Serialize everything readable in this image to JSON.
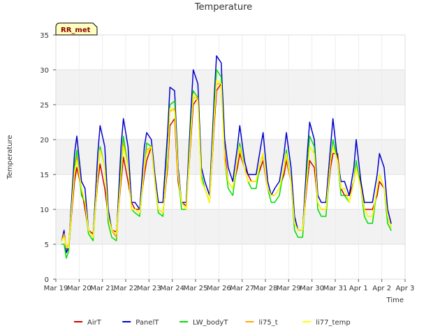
{
  "chart_data": {
    "type": "line",
    "title": "Temperature",
    "xlabel": "Time",
    "ylabel": "Temperature",
    "ylim": [
      0,
      35
    ],
    "yticks": [
      0,
      5,
      10,
      15,
      20,
      25,
      30,
      35
    ],
    "xlim": [
      0,
      15
    ],
    "xticks": [
      {
        "value": 0,
        "label": "Mar 19"
      },
      {
        "value": 1,
        "label": "Mar 20"
      },
      {
        "value": 2,
        "label": "Mar 21"
      },
      {
        "value": 3,
        "label": "Mar 22"
      },
      {
        "value": 4,
        "label": "Mar 23"
      },
      {
        "value": 5,
        "label": "Mar 24"
      },
      {
        "value": 6,
        "label": "Mar 25"
      },
      {
        "value": 7,
        "label": "Mar 26"
      },
      {
        "value": 8,
        "label": "Mar 27"
      },
      {
        "value": 9,
        "label": "Mar 28"
      },
      {
        "value": 10,
        "label": "Mar 29"
      },
      {
        "value": 11,
        "label": "Mar 30"
      },
      {
        "value": 12,
        "label": "Mar 31"
      },
      {
        "value": 13,
        "label": "Apr 1"
      },
      {
        "value": 14,
        "label": "Apr 2"
      },
      {
        "value": 15,
        "label": "Apr 3"
      }
    ],
    "grid": true,
    "alternating_bands": true,
    "legend_position": "bottom",
    "badge": "RR_met",
    "x": [
      0.25,
      0.35,
      0.45,
      0.55,
      0.65,
      0.8,
      0.9,
      1.1,
      1.25,
      1.4,
      1.6,
      1.8,
      1.9,
      2.1,
      2.25,
      2.4,
      2.6,
      2.8,
      2.9,
      3.1,
      3.25,
      3.4,
      3.6,
      3.8,
      3.9,
      4.1,
      4.25,
      4.4,
      4.6,
      4.8,
      4.9,
      5.1,
      5.25,
      5.4,
      5.6,
      5.8,
      5.9,
      6.1,
      6.25,
      6.4,
      6.6,
      6.8,
      6.9,
      7.1,
      7.25,
      7.4,
      7.6,
      7.8,
      7.9,
      8.1,
      8.25,
      8.4,
      8.6,
      8.8,
      8.9,
      9.1,
      9.25,
      9.4,
      9.6,
      9.8,
      9.9,
      10.1,
      10.25,
      10.4,
      10.6,
      10.8,
      10.9,
      11.1,
      11.25,
      11.4,
      11.6,
      11.8,
      11.9,
      12.1,
      12.25,
      12.4,
      12.6,
      12.8,
      12.9,
      13.1,
      13.25,
      13.4,
      13.6,
      13.8,
      13.9,
      14.1,
      14.25,
      14.4
    ],
    "series": [
      {
        "name": "AirT",
        "color": "#cc0000",
        "values": [
          5.5,
          6.3,
          4.5,
          4.2,
          8.5,
          14,
          16,
          13,
          10,
          7,
          6.5,
          14,
          16.5,
          13,
          9,
          7,
          6.8,
          14,
          17.5,
          14,
          11,
          10,
          10,
          15,
          17,
          19,
          14,
          10,
          9.5,
          16,
          22,
          23,
          14,
          11,
          10.5,
          20,
          25,
          26,
          14,
          13,
          11,
          22,
          27,
          28,
          18,
          14,
          13,
          16,
          18,
          16,
          15,
          14,
          14,
          16,
          17,
          13,
          12,
          12,
          13,
          15,
          17,
          14,
          8,
          7,
          7,
          14,
          17,
          16,
          11,
          10,
          10,
          16,
          18,
          18,
          13,
          12,
          12,
          14,
          16,
          14,
          10,
          10,
          10,
          12,
          14,
          13,
          9,
          7.5
        ]
      },
      {
        "name": "PanelT",
        "color": "#0000cc",
        "values": [
          5.5,
          7,
          3.8,
          4.5,
          10,
          18,
          20.5,
          14,
          13,
          7,
          6,
          18,
          22,
          19,
          10,
          7,
          6,
          19,
          23,
          19,
          11,
          11,
          10,
          19,
          21,
          20,
          15,
          11,
          11,
          21,
          27.5,
          27,
          16,
          11,
          11,
          24,
          30,
          28,
          16,
          14,
          12,
          26,
          32,
          31,
          20,
          16,
          14,
          19,
          22,
          17,
          15,
          15,
          15,
          19,
          21,
          14,
          12,
          13,
          14,
          18,
          21,
          16,
          9,
          7,
          7,
          18,
          22.5,
          20,
          12,
          11,
          11,
          19,
          23,
          17,
          14,
          14,
          12,
          16,
          20,
          14,
          11,
          11,
          11,
          15,
          18,
          16,
          10,
          8
        ]
      },
      {
        "name": "LW_bodyT",
        "color": "#00dd00",
        "values": [
          5,
          5,
          3,
          4,
          9,
          16,
          18.5,
          12,
          11,
          6.5,
          5.5,
          15,
          19,
          16,
          8,
          6,
          5.5,
          16,
          20.5,
          16,
          10,
          9.5,
          9,
          16,
          19.5,
          19,
          14,
          9.5,
          9,
          18,
          25,
          25.5,
          15,
          10,
          10,
          22,
          27,
          26,
          15,
          13,
          11,
          24,
          30,
          29,
          17,
          13,
          12,
          17,
          19.5,
          16,
          14,
          13,
          13,
          17,
          18,
          13,
          11,
          11,
          12,
          16,
          18.5,
          14,
          7,
          6,
          6,
          16,
          20.5,
          19,
          10,
          9,
          9,
          17,
          20,
          17,
          12,
          12,
          11,
          14,
          17,
          13,
          9,
          8,
          8,
          13,
          15,
          13,
          8,
          7
        ]
      },
      {
        "name": "li75_t",
        "color": "#ffaa00",
        "values": [
          5.5,
          6.5,
          4.5,
          5,
          9,
          15,
          17.5,
          13,
          11,
          7,
          6,
          15,
          18.5,
          16,
          9,
          7,
          6,
          15,
          19.5,
          16,
          10,
          10,
          9.5,
          16,
          18.5,
          19,
          14,
          10,
          9.5,
          17,
          24,
          24.5,
          15,
          11,
          10,
          21,
          26,
          26,
          14,
          13,
          11,
          23,
          28,
          28,
          17,
          14,
          13,
          17,
          18.5,
          16,
          14,
          14,
          14,
          17,
          17.5,
          13,
          12,
          12,
          13,
          16,
          17.5,
          14,
          8,
          7,
          7,
          15,
          19,
          18,
          11,
          10,
          10,
          17,
          19,
          17,
          13,
          13,
          11,
          14,
          16,
          13,
          10,
          9,
          9,
          13,
          15,
          13,
          9,
          7.5
        ]
      },
      {
        "name": "li77_temp",
        "color": "#ffff00",
        "values": [
          5.5,
          6,
          4.5,
          4.5,
          9,
          15.5,
          17,
          13,
          11,
          7,
          6,
          15,
          18.5,
          16,
          9,
          7,
          6.5,
          15,
          19,
          16,
          10,
          10,
          9.5,
          16,
          18,
          19,
          14,
          10,
          9.5,
          17,
          24.5,
          24,
          15,
          11,
          10,
          21,
          26.5,
          25.5,
          14,
          13,
          11,
          23,
          28.5,
          28,
          17,
          14,
          13,
          17,
          19,
          16,
          14,
          14,
          14,
          17,
          18,
          13,
          12,
          12,
          13,
          16,
          18,
          14,
          8,
          7,
          7,
          15,
          19,
          18,
          11,
          10,
          10,
          17,
          19,
          17,
          13,
          13,
          11,
          14,
          16,
          13,
          10,
          9,
          9,
          13,
          15,
          13,
          9,
          7.5
        ]
      }
    ]
  }
}
